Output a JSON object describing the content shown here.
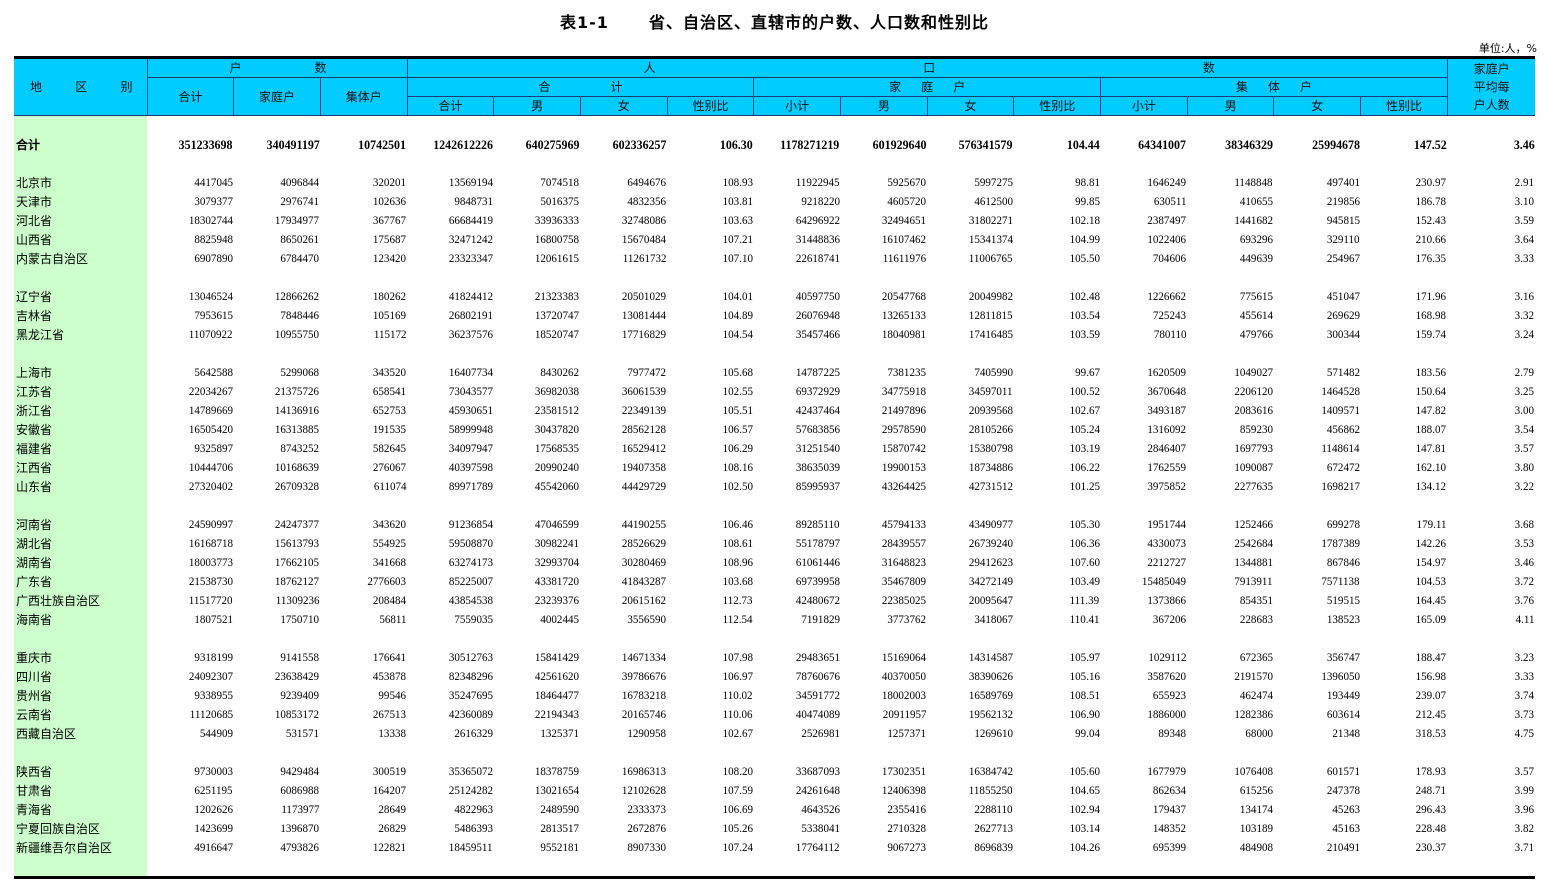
{
  "title": {
    "code": "表1-1",
    "text": "省、自治区、直辖市的户数、人口数和性别比"
  },
  "unit": "单位:人，%",
  "header": {
    "region": [
      "地",
      "区",
      "别"
    ],
    "households": [
      "户",
      "数"
    ],
    "population": [
      "人",
      "口",
      "数"
    ],
    "hh_total": "合计",
    "hh_family": "家庭户",
    "hh_collective": "集体户",
    "pop_total_group": [
      "合",
      "计"
    ],
    "pop_family_group": [
      "家",
      "庭",
      "户"
    ],
    "pop_collective_group": [
      "集",
      "体",
      "户"
    ],
    "sub_total": [
      "合计",
      "男",
      "女",
      "性别比"
    ],
    "sub_family": [
      "小计",
      "男",
      "女",
      "性别比"
    ],
    "sub_collective": [
      "小计",
      "男",
      "女",
      "性别比"
    ],
    "avg_size": [
      "家庭户",
      "平均每",
      "户人数"
    ]
  },
  "total": {
    "name": "合计",
    "values": [
      "351233698",
      "340491197",
      "10742501",
      "1242612226",
      "640275969",
      "602336257",
      "106.30",
      "1178271219",
      "601929640",
      "576341579",
      "104.44",
      "64341007",
      "38346329",
      "25994678",
      "147.52",
      "3.46"
    ]
  },
  "groups": [
    [
      {
        "name": "北京市",
        "values": [
          "4417045",
          "4096844",
          "320201",
          "13569194",
          "7074518",
          "6494676",
          "108.93",
          "11922945",
          "5925670",
          "5997275",
          "98.81",
          "1646249",
          "1148848",
          "497401",
          "230.97",
          "2.91"
        ]
      },
      {
        "name": "天津市",
        "values": [
          "3079377",
          "2976741",
          "102636",
          "9848731",
          "5016375",
          "4832356",
          "103.81",
          "9218220",
          "4605720",
          "4612500",
          "99.85",
          "630511",
          "410655",
          "219856",
          "186.78",
          "3.10"
        ]
      },
      {
        "name": "河北省",
        "values": [
          "18302744",
          "17934977",
          "367767",
          "66684419",
          "33936333",
          "32748086",
          "103.63",
          "64296922",
          "32494651",
          "31802271",
          "102.18",
          "2387497",
          "1441682",
          "945815",
          "152.43",
          "3.59"
        ]
      },
      {
        "name": "山西省",
        "values": [
          "8825948",
          "8650261",
          "175687",
          "32471242",
          "16800758",
          "15670484",
          "107.21",
          "31448836",
          "16107462",
          "15341374",
          "104.99",
          "1022406",
          "693296",
          "329110",
          "210.66",
          "3.64"
        ]
      },
      {
        "name": "内蒙古自治区",
        "values": [
          "6907890",
          "6784470",
          "123420",
          "23323347",
          "12061615",
          "11261732",
          "107.10",
          "22618741",
          "11611976",
          "11006765",
          "105.50",
          "704606",
          "449639",
          "254967",
          "176.35",
          "3.33"
        ]
      }
    ],
    [
      {
        "name": "辽宁省",
        "values": [
          "13046524",
          "12866262",
          "180262",
          "41824412",
          "21323383",
          "20501029",
          "104.01",
          "40597750",
          "20547768",
          "20049982",
          "102.48",
          "1226662",
          "775615",
          "451047",
          "171.96",
          "3.16"
        ]
      },
      {
        "name": "吉林省",
        "values": [
          "7953615",
          "7848446",
          "105169",
          "26802191",
          "13720747",
          "13081444",
          "104.89",
          "26076948",
          "13265133",
          "12811815",
          "103.54",
          "725243",
          "455614",
          "269629",
          "168.98",
          "3.32"
        ]
      },
      {
        "name": "黑龙江省",
        "values": [
          "11070922",
          "10955750",
          "115172",
          "36237576",
          "18520747",
          "17716829",
          "104.54",
          "35457466",
          "18040981",
          "17416485",
          "103.59",
          "780110",
          "479766",
          "300344",
          "159.74",
          "3.24"
        ]
      }
    ],
    [
      {
        "name": "上海市",
        "values": [
          "5642588",
          "5299068",
          "343520",
          "16407734",
          "8430262",
          "7977472",
          "105.68",
          "14787225",
          "7381235",
          "7405990",
          "99.67",
          "1620509",
          "1049027",
          "571482",
          "183.56",
          "2.79"
        ]
      },
      {
        "name": "江苏省",
        "values": [
          "22034267",
          "21375726",
          "658541",
          "73043577",
          "36982038",
          "36061539",
          "102.55",
          "69372929",
          "34775918",
          "34597011",
          "100.52",
          "3670648",
          "2206120",
          "1464528",
          "150.64",
          "3.25"
        ]
      },
      {
        "name": "浙江省",
        "values": [
          "14789669",
          "14136916",
          "652753",
          "45930651",
          "23581512",
          "22349139",
          "105.51",
          "42437464",
          "21497896",
          "20939568",
          "102.67",
          "3493187",
          "2083616",
          "1409571",
          "147.82",
          "3.00"
        ]
      },
      {
        "name": "安徽省",
        "values": [
          "16505420",
          "16313885",
          "191535",
          "58999948",
          "30437820",
          "28562128",
          "106.57",
          "57683856",
          "29578590",
          "28105266",
          "105.24",
          "1316092",
          "859230",
          "456862",
          "188.07",
          "3.54"
        ]
      },
      {
        "name": "福建省",
        "values": [
          "9325897",
          "8743252",
          "582645",
          "34097947",
          "17568535",
          "16529412",
          "106.29",
          "31251540",
          "15870742",
          "15380798",
          "103.19",
          "2846407",
          "1697793",
          "1148614",
          "147.81",
          "3.57"
        ]
      },
      {
        "name": "江西省",
        "values": [
          "10444706",
          "10168639",
          "276067",
          "40397598",
          "20990240",
          "19407358",
          "108.16",
          "38635039",
          "19900153",
          "18734886",
          "106.22",
          "1762559",
          "1090087",
          "672472",
          "162.10",
          "3.80"
        ]
      },
      {
        "name": "山东省",
        "values": [
          "27320402",
          "26709328",
          "611074",
          "89971789",
          "45542060",
          "44429729",
          "102.50",
          "85995937",
          "43264425",
          "42731512",
          "101.25",
          "3975852",
          "2277635",
          "1698217",
          "134.12",
          "3.22"
        ]
      }
    ],
    [
      {
        "name": "河南省",
        "values": [
          "24590997",
          "24247377",
          "343620",
          "91236854",
          "47046599",
          "44190255",
          "106.46",
          "89285110",
          "45794133",
          "43490977",
          "105.30",
          "1951744",
          "1252466",
          "699278",
          "179.11",
          "3.68"
        ]
      },
      {
        "name": "湖北省",
        "values": [
          "16168718",
          "15613793",
          "554925",
          "59508870",
          "30982241",
          "28526629",
          "108.61",
          "55178797",
          "28439557",
          "26739240",
          "106.36",
          "4330073",
          "2542684",
          "1787389",
          "142.26",
          "3.53"
        ]
      },
      {
        "name": "湖南省",
        "values": [
          "18003773",
          "17662105",
          "341668",
          "63274173",
          "32993704",
          "30280469",
          "108.96",
          "61061446",
          "31648823",
          "29412623",
          "107.60",
          "2212727",
          "1344881",
          "867846",
          "154.97",
          "3.46"
        ]
      },
      {
        "name": "广东省",
        "values": [
          "21538730",
          "18762127",
          "2776603",
          "85225007",
          "43381720",
          "41843287",
          "103.68",
          "69739958",
          "35467809",
          "34272149",
          "103.49",
          "15485049",
          "7913911",
          "7571138",
          "104.53",
          "3.72"
        ]
      },
      {
        "name": "广西壮族自治区",
        "values": [
          "11517720",
          "11309236",
          "208484",
          "43854538",
          "23239376",
          "20615162",
          "112.73",
          "42480672",
          "22385025",
          "20095647",
          "111.39",
          "1373866",
          "854351",
          "519515",
          "164.45",
          "3.76"
        ]
      },
      {
        "name": "海南省",
        "values": [
          "1807521",
          "1750710",
          "56811",
          "7559035",
          "4002445",
          "3556590",
          "112.54",
          "7191829",
          "3773762",
          "3418067",
          "110.41",
          "367206",
          "228683",
          "138523",
          "165.09",
          "4.11"
        ]
      }
    ],
    [
      {
        "name": "重庆市",
        "values": [
          "9318199",
          "9141558",
          "176641",
          "30512763",
          "15841429",
          "14671334",
          "107.98",
          "29483651",
          "15169064",
          "14314587",
          "105.97",
          "1029112",
          "672365",
          "356747",
          "188.47",
          "3.23"
        ]
      },
      {
        "name": "四川省",
        "values": [
          "24092307",
          "23638429",
          "453878",
          "82348296",
          "42561620",
          "39786676",
          "106.97",
          "78760676",
          "40370050",
          "38390626",
          "105.16",
          "3587620",
          "2191570",
          "1396050",
          "156.98",
          "3.33"
        ]
      },
      {
        "name": "贵州省",
        "values": [
          "9338955",
          "9239409",
          "99546",
          "35247695",
          "18464477",
          "16783218",
          "110.02",
          "34591772",
          "18002003",
          "16589769",
          "108.51",
          "655923",
          "462474",
          "193449",
          "239.07",
          "3.74"
        ]
      },
      {
        "name": "云南省",
        "values": [
          "11120685",
          "10853172",
          "267513",
          "42360089",
          "22194343",
          "20165746",
          "110.06",
          "40474089",
          "20911957",
          "19562132",
          "106.90",
          "1886000",
          "1282386",
          "603614",
          "212.45",
          "3.73"
        ]
      },
      {
        "name": "西藏自治区",
        "values": [
          "544909",
          "531571",
          "13338",
          "2616329",
          "1325371",
          "1290958",
          "102.67",
          "2526981",
          "1257371",
          "1269610",
          "99.04",
          "89348",
          "68000",
          "21348",
          "318.53",
          "4.75"
        ]
      }
    ],
    [
      {
        "name": "陕西省",
        "values": [
          "9730003",
          "9429484",
          "300519",
          "35365072",
          "18378759",
          "16986313",
          "108.20",
          "33687093",
          "17302351",
          "16384742",
          "105.60",
          "1677979",
          "1076408",
          "601571",
          "178.93",
          "3.57"
        ]
      },
      {
        "name": "甘肃省",
        "values": [
          "6251195",
          "6086988",
          "164207",
          "25124282",
          "13021654",
          "12102628",
          "107.59",
          "24261648",
          "12406398",
          "11855250",
          "104.65",
          "862634",
          "615256",
          "247378",
          "248.71",
          "3.99"
        ]
      },
      {
        "name": "青海省",
        "values": [
          "1202626",
          "1173977",
          "28649",
          "4822963",
          "2489590",
          "2333373",
          "106.69",
          "4643526",
          "2355416",
          "2288110",
          "102.94",
          "179437",
          "134174",
          "45263",
          "296.43",
          "3.96"
        ]
      },
      {
        "name": "宁夏回族自治区",
        "values": [
          "1423699",
          "1396870",
          "26829",
          "5486393",
          "2813517",
          "2672876",
          "105.26",
          "5338041",
          "2710328",
          "2627713",
          "103.14",
          "148352",
          "103189",
          "45163",
          "228.48",
          "3.82"
        ]
      },
      {
        "name": "新疆维吾尔自治区",
        "values": [
          "4916647",
          "4793826",
          "122821",
          "18459511",
          "9552181",
          "8907330",
          "107.24",
          "17764112",
          "9067273",
          "8696839",
          "104.26",
          "695399",
          "484908",
          "210491",
          "230.37",
          "3.71"
        ]
      }
    ]
  ],
  "colors": {
    "header_bg": "#00CCFF",
    "region_bg": "#CCFFCC"
  }
}
